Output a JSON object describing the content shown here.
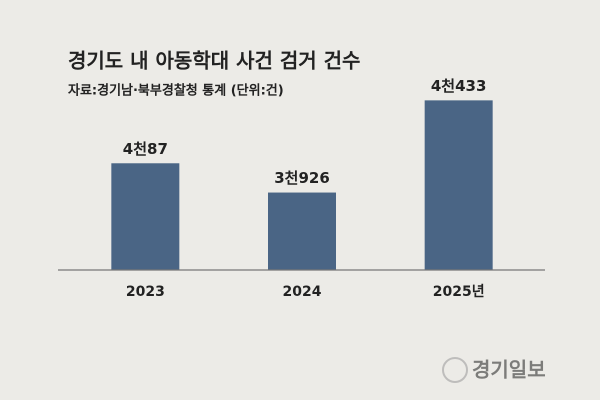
{
  "chart_data": {
    "type": "bar",
    "title": "경기도 내 아동학대 사건 검거 건수",
    "subtitle": "자료:경기남·북부경찰청 통계 (단위:건)",
    "categories": [
      "2023",
      "2024",
      "2025년"
    ],
    "values": [
      4087,
      3926,
      4433
    ],
    "value_labels": [
      "4천87",
      "3천926",
      "4천433"
    ],
    "color": "#4a6585",
    "ylim": [
      3500,
      4600
    ],
    "grid": false,
    "watermark": "경기일보"
  }
}
